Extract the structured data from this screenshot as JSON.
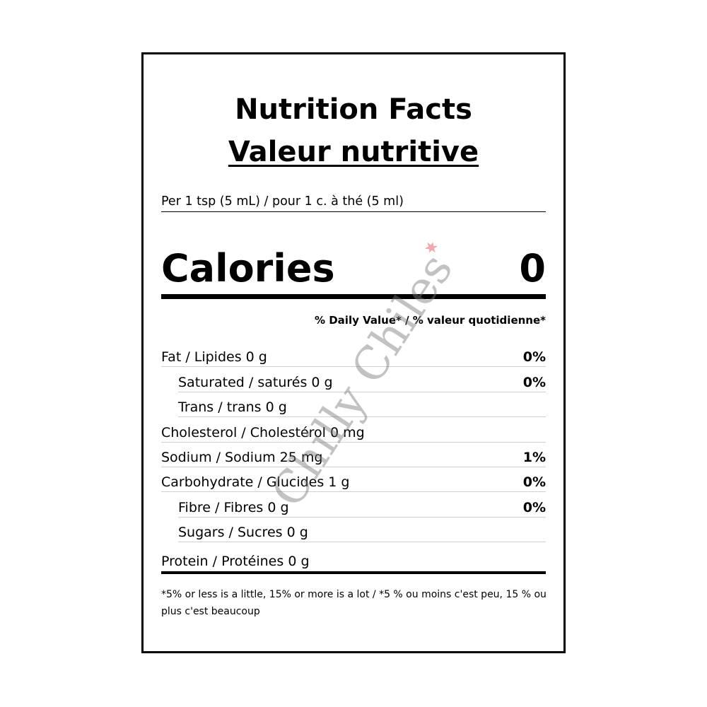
{
  "label": {
    "title_en": "Nutrition Facts",
    "title_fr": "Valeur nutritive",
    "serving": "Per 1 tsp (5 mL) / pour 1 c. à thé (5 ml)",
    "calories_label": "Calories",
    "calories_value": "0",
    "daily_value_header": "% Daily Value* / % valeur quotidienne*",
    "rows": [
      {
        "name": "Fat / Lipides 0 g",
        "dv": "0%"
      },
      {
        "name": "Saturated / saturés 0 g",
        "dv": "0%"
      },
      {
        "name": "Trans / trans 0 g",
        "dv": ""
      },
      {
        "name": "Cholesterol / Cholestérol 0 mg",
        "dv": ""
      },
      {
        "name": "Sodium / Sodium 25 mg",
        "dv": "1%"
      },
      {
        "name": "Carbohydrate / Glucides 1 g",
        "dv": "0%"
      },
      {
        "name": "Fibre / Fibres 0 g",
        "dv": "0%"
      },
      {
        "name": "Sugars / Sucres 0 g",
        "dv": ""
      },
      {
        "name": "Protein / Protéines 0 g",
        "dv": ""
      }
    ],
    "footnote": "*5% or less is a little, 15% or more is a lot / *5 % ou moins c'est peu, 15 % ou plus c'est beaucoup"
  },
  "watermark": {
    "text": "Chilly Chiles",
    "accent_color": "#f2a7ad"
  }
}
